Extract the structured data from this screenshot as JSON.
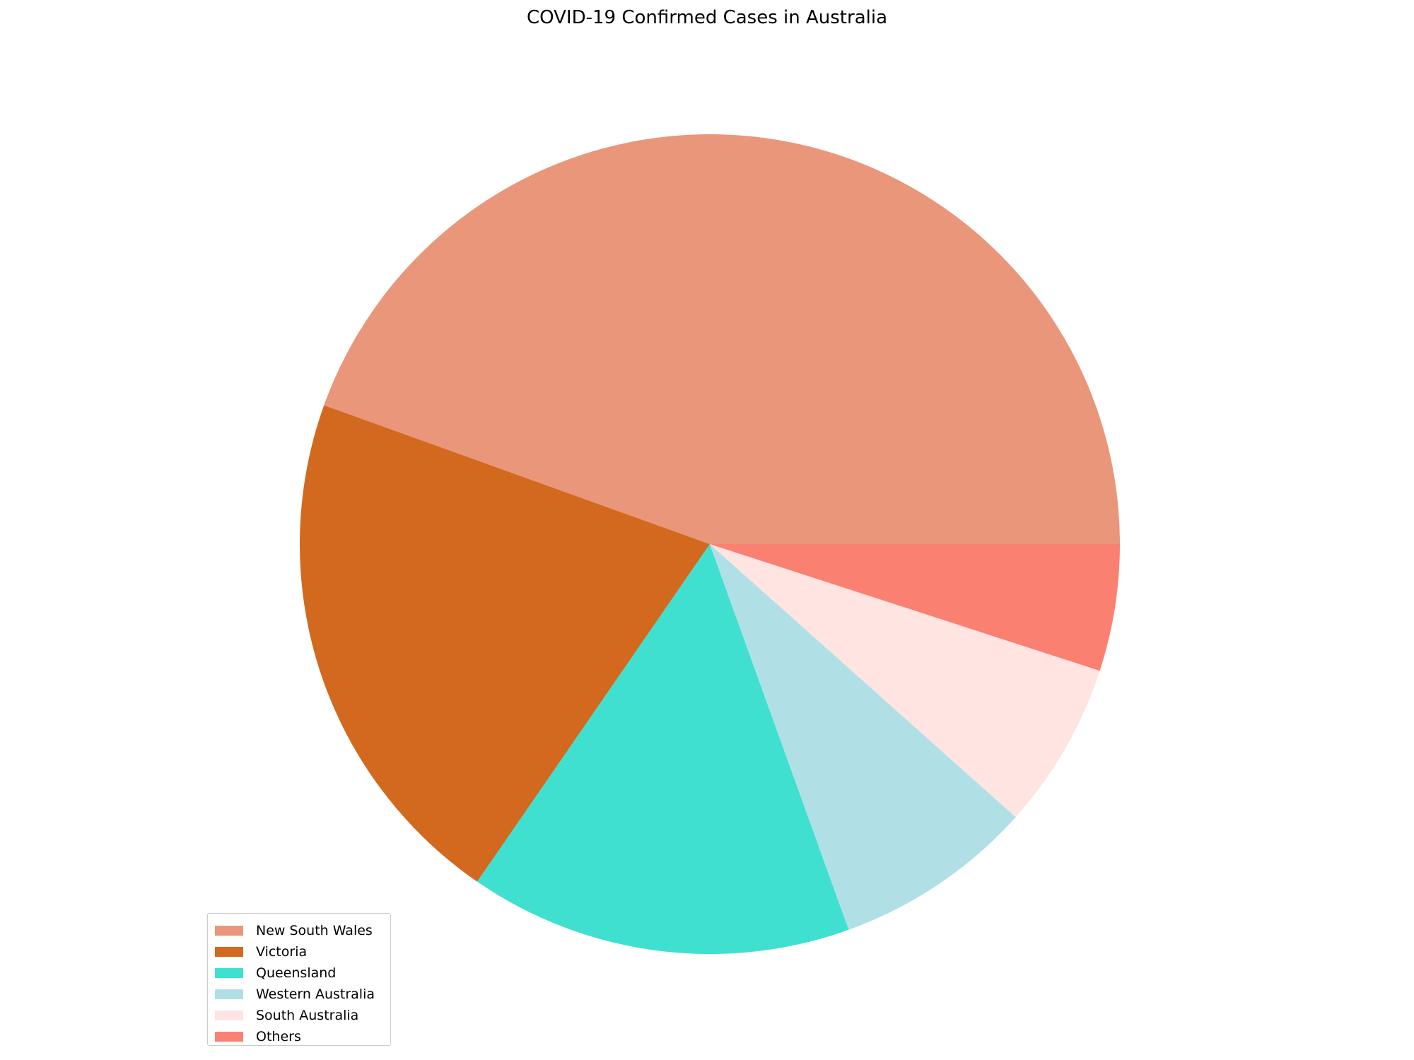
{
  "chart_data": {
    "type": "pie",
    "title": "COVID-19 Confirmed Cases in Australia",
    "categories": [
      "New South Wales",
      "Victoria",
      "Queensland",
      "Western Australia",
      "South Australia",
      "Others"
    ],
    "values": [
      44.5,
      20.9,
      15.1,
      7.9,
      6.6,
      5.0
    ],
    "colors": [
      "#E9967A",
      "#D2691E",
      "#40E0D0",
      "#B0E0E6",
      "#FFE4E1",
      "#FA8072"
    ],
    "start_angle_deg": 0,
    "direction": "counterclockwise",
    "legend_location": "lower-left",
    "legend": [
      "New South Wales",
      "Victoria",
      "Queensland",
      "Western Australia",
      "South Australia",
      "Others"
    ]
  }
}
